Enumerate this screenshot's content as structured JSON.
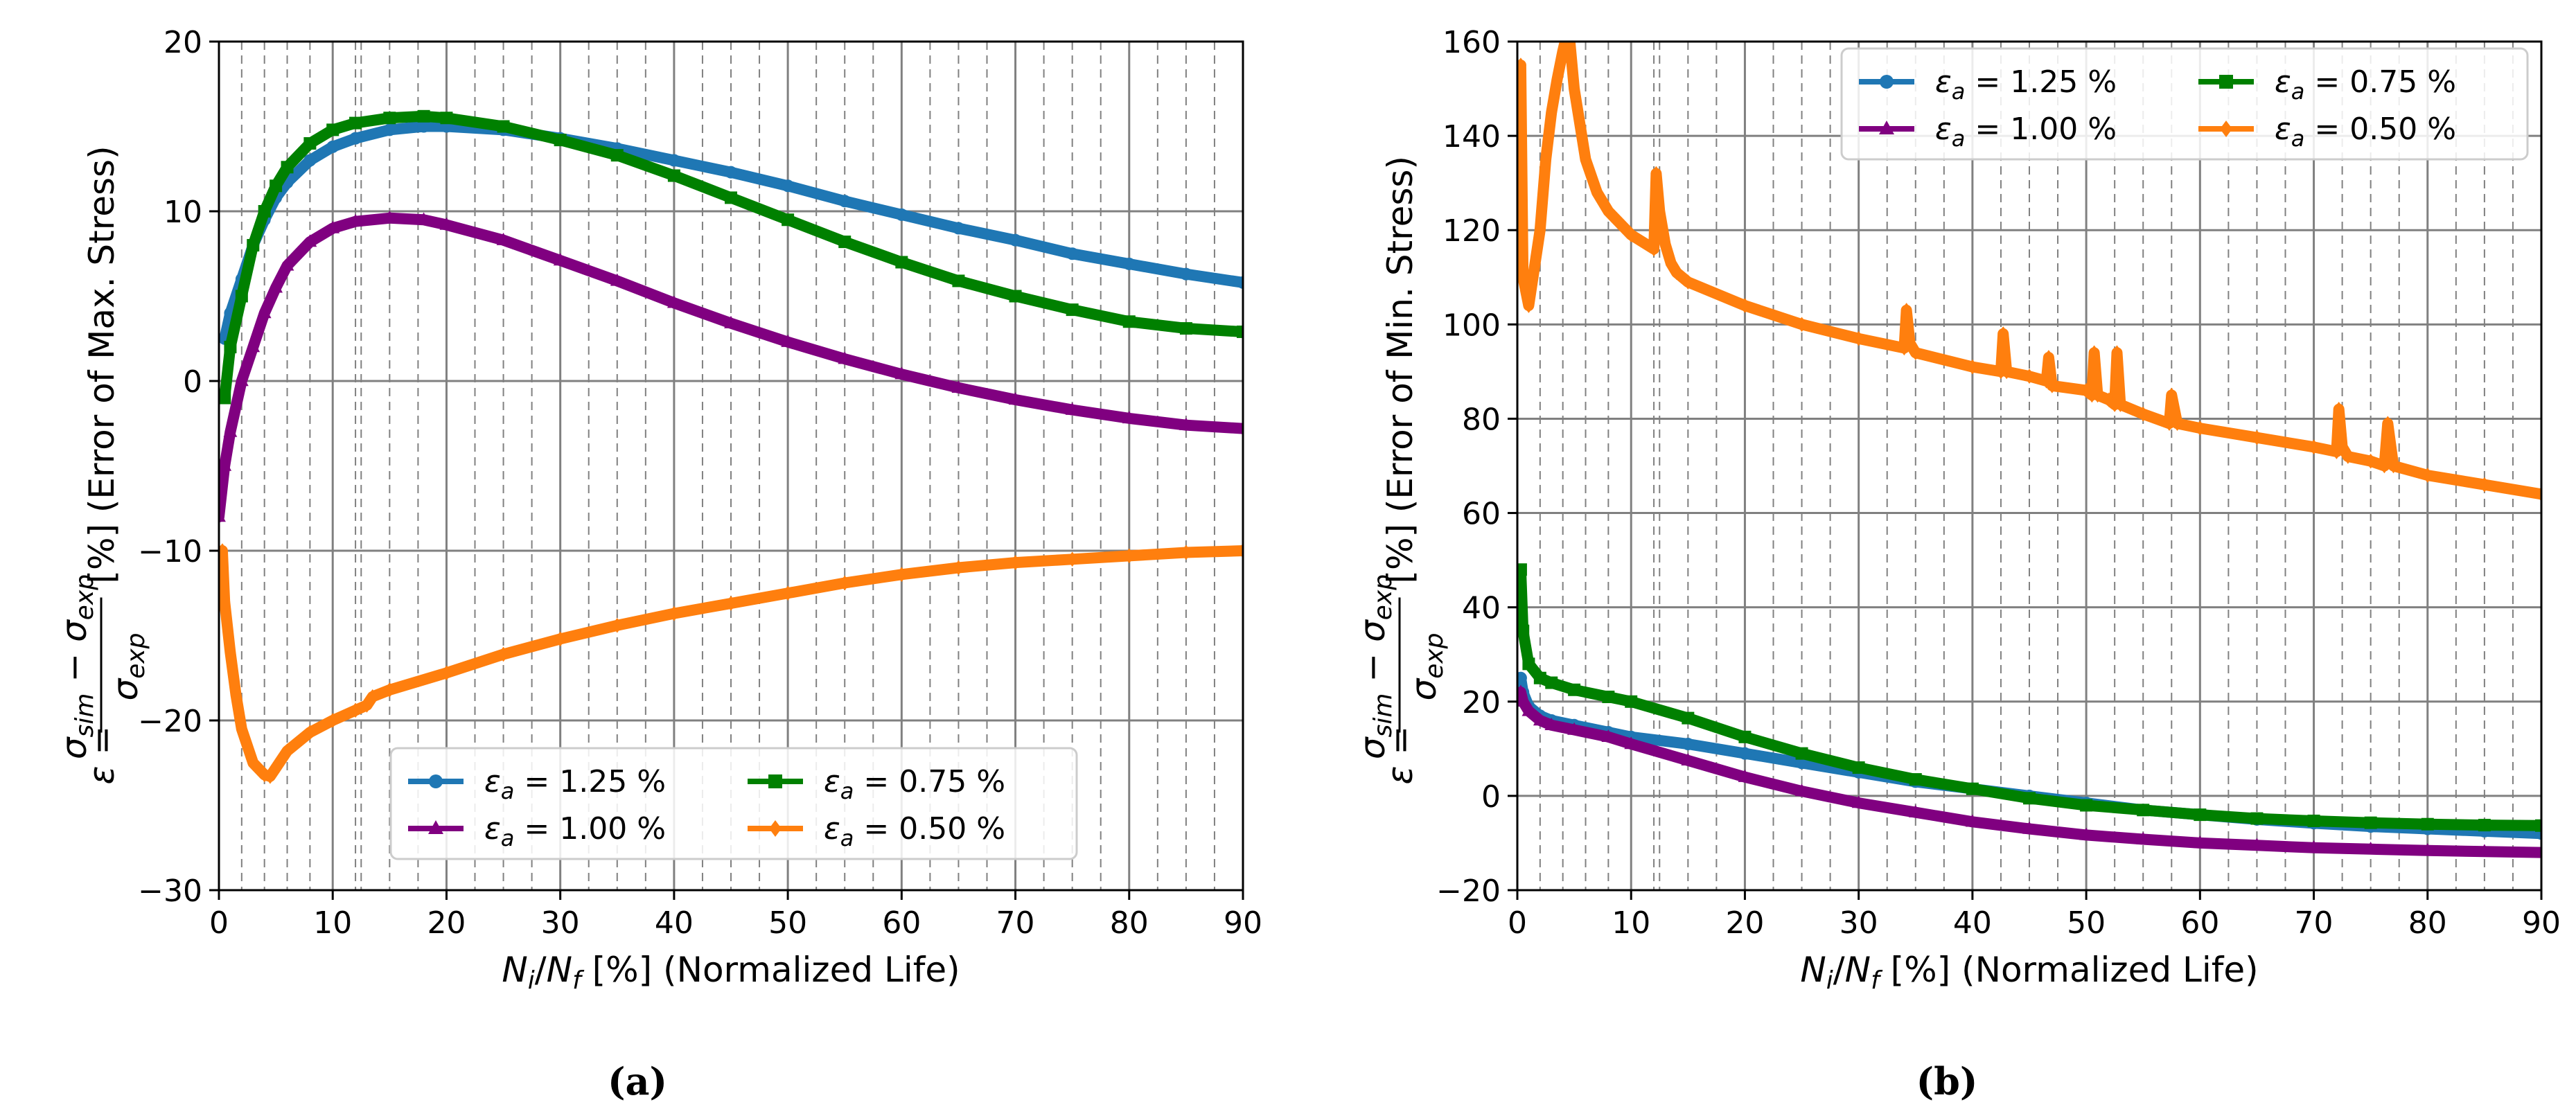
{
  "colors": {
    "blue": "#1f77b4",
    "purple": "#800080",
    "green": "#008000",
    "orange": "#ff7f0e",
    "grid": "#808080"
  },
  "chart_data": [
    {
      "id": "a",
      "type": "line",
      "caption": "(a)",
      "xlabel": "N_i/N_f [%] (Normalized Life)",
      "ylabel_suffix": "[%] (Error of Max. Stress)",
      "xlim": [
        0,
        90
      ],
      "ylim": [
        -30,
        20
      ],
      "xticks": [
        0,
        10,
        20,
        30,
        40,
        50,
        60,
        70,
        80,
        90
      ],
      "yticks": [
        -30,
        -20,
        -10,
        0,
        10,
        20
      ],
      "grid": true,
      "legend_position": "lower-right",
      "series": [
        {
          "name": "ε_a = 1.25 %",
          "label_sym": "ε",
          "label_sub": "a",
          "label_val": " = 1.25 %",
          "color": "#1f77b4",
          "marker": "circle",
          "x": [
            0.5,
            1,
            2,
            3,
            4,
            5,
            6,
            8,
            10,
            12,
            15,
            18,
            20,
            25,
            30,
            35,
            40,
            45,
            50,
            55,
            60,
            65,
            70,
            75,
            80,
            85,
            90
          ],
          "y": [
            2.5,
            4,
            6,
            8,
            9.5,
            10.8,
            11.7,
            13,
            13.8,
            14.3,
            14.8,
            15,
            15,
            14.8,
            14.3,
            13.7,
            13,
            12.3,
            11.5,
            10.6,
            9.8,
            9,
            8.3,
            7.5,
            6.9,
            6.3,
            5.8
          ]
        },
        {
          "name": "ε_a = 1.00 %",
          "label_sym": "ε",
          "label_sub": "a",
          "label_val": " = 1.00 %",
          "color": "#800080",
          "marker": "triangle",
          "x": [
            0,
            0.5,
            1,
            2,
            3,
            4,
            5,
            6,
            8,
            10,
            12,
            15,
            18,
            20,
            25,
            30,
            35,
            40,
            45,
            50,
            55,
            60,
            65,
            70,
            75,
            80,
            85,
            90
          ],
          "y": [
            -8,
            -5,
            -3,
            0,
            2,
            4,
            5.5,
            6.8,
            8.2,
            9,
            9.4,
            9.6,
            9.5,
            9.2,
            8.3,
            7.1,
            5.9,
            4.6,
            3.4,
            2.3,
            1.3,
            0.4,
            -0.4,
            -1.1,
            -1.7,
            -2.2,
            -2.6,
            -2.8
          ]
        },
        {
          "name": "ε_a = 0.75 %",
          "label_sym": "ε",
          "label_sub": "a",
          "label_val": " = 0.75 %",
          "color": "#008000",
          "marker": "square",
          "x": [
            0.5,
            1,
            2,
            3,
            4,
            5,
            6,
            8,
            10,
            12,
            15,
            18,
            20,
            25,
            30,
            35,
            40,
            45,
            50,
            55,
            60,
            65,
            70,
            75,
            80,
            85,
            90
          ],
          "y": [
            -1,
            2,
            5,
            8,
            10,
            11.5,
            12.6,
            14,
            14.8,
            15.2,
            15.5,
            15.6,
            15.5,
            15,
            14.2,
            13.3,
            12.1,
            10.8,
            9.5,
            8.2,
            7,
            5.9,
            5,
            4.2,
            3.5,
            3.1,
            2.9
          ]
        },
        {
          "name": "ε_a = 0.50 %",
          "label_sym": "ε",
          "label_sub": "a",
          "label_val": " = 0.50 %",
          "color": "#ff7f0e",
          "marker": "diamond",
          "x": [
            0.3,
            0.5,
            1,
            1.5,
            2,
            3,
            4,
            4.5,
            5,
            6,
            8,
            10,
            12,
            13,
            13.5,
            15,
            20,
            25,
            30,
            35,
            40,
            45,
            50,
            55,
            60,
            65,
            70,
            75,
            80,
            85,
            90
          ],
          "y": [
            -10,
            -13,
            -16,
            -18.5,
            -20.5,
            -22.5,
            -23.2,
            -23.3,
            -22.8,
            -21.8,
            -20.7,
            -20,
            -19.4,
            -19.1,
            -18.6,
            -18.2,
            -17.2,
            -16.1,
            -15.2,
            -14.4,
            -13.7,
            -13.1,
            -12.5,
            -11.9,
            -11.4,
            -11,
            -10.7,
            -10.5,
            -10.3,
            -10.1,
            -10
          ]
        }
      ]
    },
    {
      "id": "b",
      "type": "line",
      "caption": "(b)",
      "xlabel": "N_i/N_f [%] (Normalized Life)",
      "ylabel_suffix": "[%] (Error of Min. Stress)",
      "xlim": [
        0,
        90
      ],
      "ylim": [
        -20,
        160
      ],
      "xticks": [
        0,
        10,
        20,
        30,
        40,
        50,
        60,
        70,
        80,
        90
      ],
      "yticks": [
        -20,
        0,
        20,
        40,
        60,
        80,
        100,
        120,
        140,
        160
      ],
      "grid": true,
      "legend_position": "top-right",
      "series": [
        {
          "name": "ε_a = 1.25 %",
          "label_sym": "ε",
          "label_sub": "a",
          "label_val": " = 1.25 %",
          "color": "#1f77b4",
          "marker": "circle",
          "x": [
            0.3,
            0.5,
            1,
            2,
            3,
            5,
            8,
            10,
            15,
            20,
            25,
            30,
            35,
            40,
            45,
            50,
            55,
            60,
            65,
            70,
            75,
            80,
            85,
            90
          ],
          "y": [
            25,
            22,
            19,
            17,
            16,
            15,
            13.5,
            12.5,
            11,
            9,
            7,
            5,
            3,
            1.5,
            0,
            -1.5,
            -3,
            -4,
            -5,
            -5.8,
            -6.5,
            -7,
            -7.5,
            -8
          ]
        },
        {
          "name": "ε_a = 1.00 %",
          "label_sym": "ε",
          "label_sub": "a",
          "label_val": " = 1.00 %",
          "color": "#800080",
          "marker": "triangle",
          "x": [
            0.3,
            0.5,
            1,
            2,
            3,
            5,
            8,
            10,
            15,
            20,
            25,
            30,
            35,
            40,
            45,
            50,
            55,
            60,
            65,
            70,
            75,
            80,
            85,
            90
          ],
          "y": [
            22,
            20,
            18,
            16,
            15,
            14,
            12.5,
            11,
            7.5,
            4,
            1,
            -1.5,
            -3.5,
            -5.5,
            -7,
            -8.3,
            -9.2,
            -10,
            -10.5,
            -11,
            -11.3,
            -11.6,
            -11.8,
            -12
          ]
        },
        {
          "name": "ε_a = 0.75 %",
          "label_sym": "ε",
          "label_sub": "a",
          "label_val": " = 0.75 %",
          "color": "#008000",
          "marker": "square",
          "x": [
            0.3,
            0.5,
            1,
            2,
            3,
            5,
            8,
            10,
            15,
            20,
            25,
            30,
            35,
            40,
            45,
            50,
            55,
            60,
            65,
            70,
            75,
            80,
            85,
            90
          ],
          "y": [
            48,
            35,
            28,
            25,
            24,
            22.5,
            21,
            20,
            16.5,
            12.5,
            9,
            6,
            3.5,
            1.5,
            -0.5,
            -2,
            -3,
            -4,
            -4.8,
            -5.3,
            -5.7,
            -6,
            -6.2,
            -6.3
          ]
        },
        {
          "name": "ε_a = 0.50 %",
          "label_sym": "ε",
          "label_sub": "a",
          "label_val": " = 0.50 %",
          "color": "#ff7f0e",
          "marker": "diamond",
          "x": [
            0.3,
            0.5,
            1,
            1.5,
            2,
            2.5,
            3,
            3.5,
            4,
            4.5,
            5,
            6,
            7,
            8,
            10,
            12,
            12.2,
            12.5,
            13,
            13.5,
            14,
            15,
            20,
            25,
            30,
            34,
            34.2,
            34.5,
            35,
            40,
            42.5,
            42.7,
            43,
            45,
            46.5,
            46.7,
            47,
            50,
            50.5,
            50.7,
            51,
            52,
            52.5,
            52.7,
            53,
            55,
            57.3,
            57.5,
            58,
            60,
            65,
            70,
            72,
            72.2,
            72.5,
            73,
            75,
            76.2,
            76.5,
            77,
            80,
            85,
            90
          ],
          "y": [
            155,
            110,
            104,
            112,
            120,
            135,
            145,
            152,
            158,
            163,
            150,
            135,
            128,
            124,
            119,
            116,
            132,
            124,
            117,
            113,
            111,
            109,
            104,
            100,
            97,
            95,
            103,
            96,
            94,
            91,
            90,
            98,
            90,
            89,
            88,
            93,
            87,
            86,
            85,
            94,
            85,
            84,
            83,
            94,
            83,
            81,
            79,
            85,
            79,
            78,
            76,
            74,
            73,
            82,
            74,
            72,
            71,
            70,
            79,
            70,
            68,
            66,
            64
          ]
        }
      ]
    }
  ]
}
